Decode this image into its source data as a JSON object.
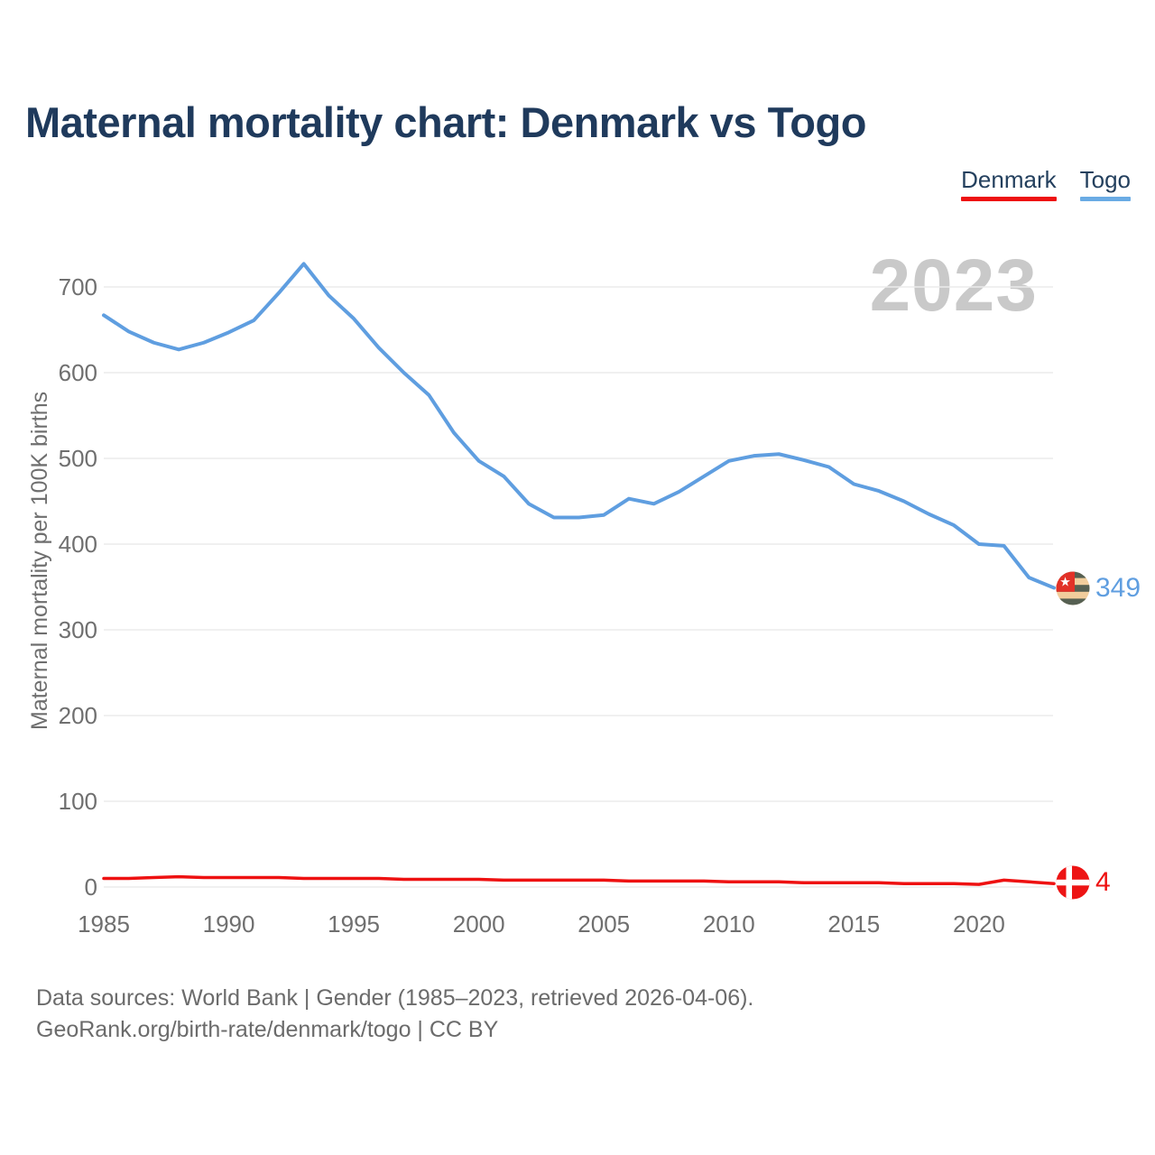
{
  "page": {
    "title": "Maternal mortality chart: Denmark vs Togo"
  },
  "legend": {
    "items": [
      {
        "label": "Denmark",
        "color": "#ee1111"
      },
      {
        "label": "Togo",
        "color": "#6aabe4"
      }
    ]
  },
  "watermark": "2023",
  "end_labels": {
    "togo": "349",
    "denmark": "4"
  },
  "chart_data": {
    "type": "line",
    "title": "Maternal mortality chart: Denmark vs Togo",
    "xlabel": "",
    "ylabel": "Maternal mortality per 100K births",
    "x": [
      1985,
      1986,
      1987,
      1988,
      1989,
      1990,
      1991,
      1992,
      1993,
      1994,
      1995,
      1996,
      1997,
      1998,
      1999,
      2000,
      2001,
      2002,
      2003,
      2004,
      2005,
      2006,
      2007,
      2008,
      2009,
      2010,
      2011,
      2012,
      2013,
      2014,
      2015,
      2016,
      2017,
      2018,
      2019,
      2020,
      2021,
      2022,
      2023
    ],
    "x_ticks": [
      1985,
      1990,
      1995,
      2000,
      2005,
      2010,
      2015,
      2020
    ],
    "y_ticks": [
      0,
      100,
      200,
      300,
      400,
      500,
      600,
      700
    ],
    "ylim": [
      0,
      760
    ],
    "grid": "horizontal",
    "legend_position": "top-right",
    "series": [
      {
        "name": "Denmark",
        "color": "#ee1111",
        "end_label": "4",
        "values": [
          10,
          10,
          11,
          12,
          11,
          11,
          11,
          11,
          10,
          10,
          10,
          10,
          9,
          9,
          9,
          9,
          8,
          8,
          8,
          8,
          8,
          7,
          7,
          7,
          7,
          6,
          6,
          6,
          5,
          5,
          5,
          5,
          4,
          4,
          4,
          3,
          8,
          6,
          4
        ]
      },
      {
        "name": "Togo",
        "color": "#5f9ee0",
        "end_label": "349",
        "values": [
          667,
          648,
          635,
          627,
          635,
          647,
          661,
          693,
          727,
          690,
          663,
          629,
          600,
          574,
          530,
          497,
          479,
          447,
          431,
          431,
          434,
          453,
          447,
          461,
          479,
          497,
          503,
          505,
          498,
          490,
          470,
          462,
          450,
          435,
          422,
          400,
          398,
          361,
          349
        ]
      }
    ]
  },
  "colors": {
    "title_text": "#1f3a5c",
    "axis_text": "#6f6f6f",
    "gridline": "#ececec",
    "watermark_text": "#c9c9c9",
    "footer_text": "#6b6b6b"
  },
  "footer": {
    "line1": "Data sources: World Bank | Gender (1985–2023, retrieved 2026-04-06).",
    "line2": "GeoRank.org/birth-rate/denmark/togo | CC BY"
  }
}
